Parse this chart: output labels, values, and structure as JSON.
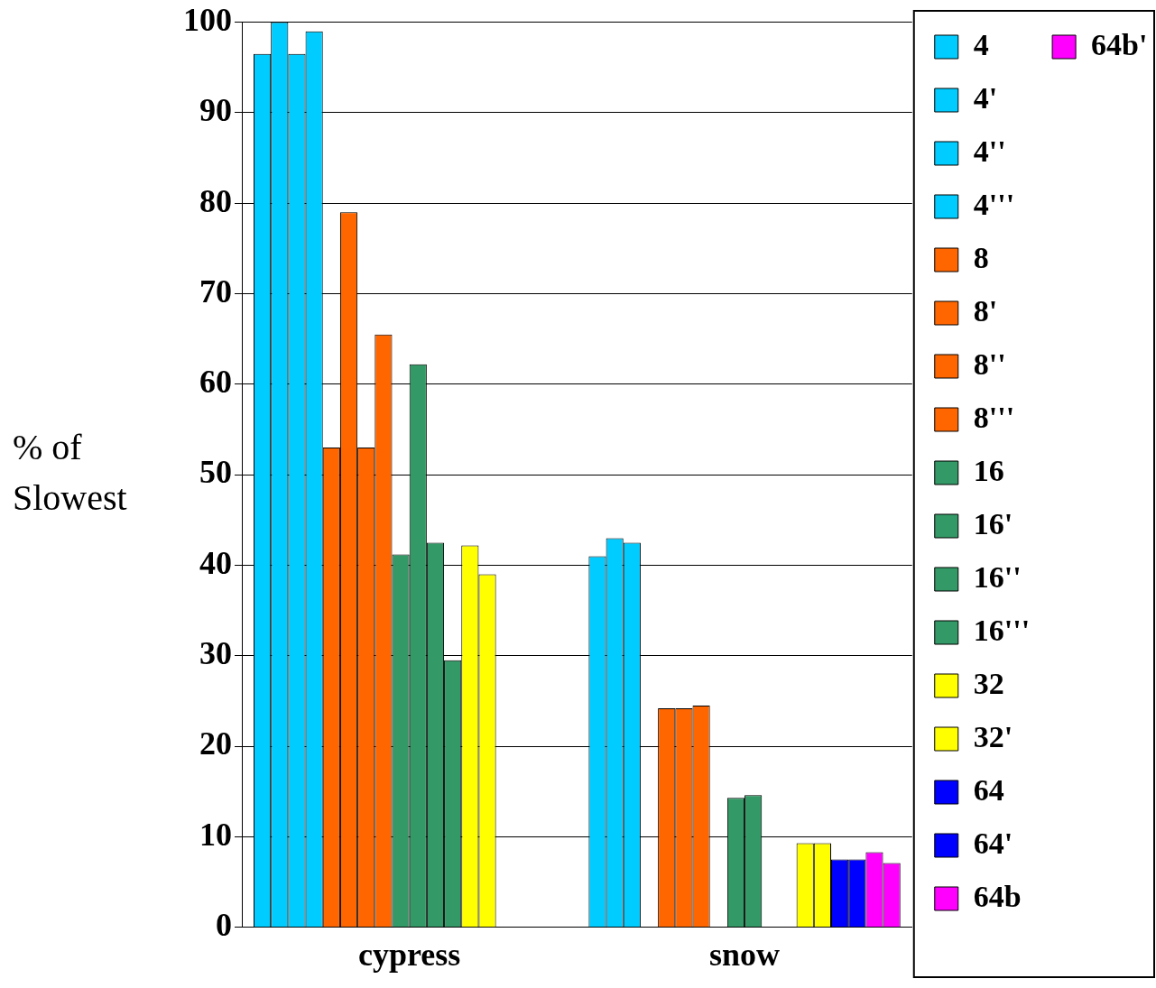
{
  "chart_data": {
    "type": "bar",
    "ylabel": "% of Slowest",
    "categories": [
      "cypress",
      "snow"
    ],
    "ylim": [
      0,
      100
    ],
    "yticks": [
      0,
      10,
      20,
      30,
      40,
      50,
      60,
      70,
      80,
      90,
      100
    ],
    "grid": "y",
    "legend": "right",
    "series": [
      {
        "name": "4",
        "color": "#00ccff",
        "values": [
          96.5,
          41
        ]
      },
      {
        "name": "4'",
        "color": "#00ccff",
        "values": [
          100,
          43
        ]
      },
      {
        "name": "4''",
        "color": "#00ccff",
        "values": [
          96.5,
          42.5
        ]
      },
      {
        "name": "4'''",
        "color": "#00ccff",
        "values": [
          99,
          0
        ]
      },
      {
        "name": "8",
        "color": "#ff6600",
        "values": [
          53,
          24.2
        ]
      },
      {
        "name": "8'",
        "color": "#ff6600",
        "values": [
          79,
          24.2
        ]
      },
      {
        "name": "8''",
        "color": "#ff6600",
        "values": [
          53,
          24.5
        ]
      },
      {
        "name": "8'''",
        "color": "#ff6600",
        "values": [
          65.5,
          0
        ]
      },
      {
        "name": "16",
        "color": "#339966",
        "values": [
          41.2,
          14.3
        ]
      },
      {
        "name": "16'",
        "color": "#339966",
        "values": [
          62.2,
          14.6
        ]
      },
      {
        "name": "16''",
        "color": "#339966",
        "values": [
          42.5,
          0
        ]
      },
      {
        "name": "16'''",
        "color": "#339966",
        "values": [
          29.5,
          0
        ]
      },
      {
        "name": "32",
        "color": "#ffff00",
        "values": [
          42.2,
          9.3
        ]
      },
      {
        "name": "32'",
        "color": "#ffff00",
        "values": [
          39,
          9.3
        ]
      },
      {
        "name": "64",
        "color": "#0000ff",
        "values": [
          0,
          7.5
        ]
      },
      {
        "name": "64'",
        "color": "#0000ff",
        "values": [
          0,
          7.5
        ]
      },
      {
        "name": "64b",
        "color": "#ff00ff",
        "values": [
          0,
          8.3
        ]
      },
      {
        "name": "64b'",
        "color": "#ff00ff",
        "values": [
          0,
          7.1
        ]
      }
    ]
  }
}
